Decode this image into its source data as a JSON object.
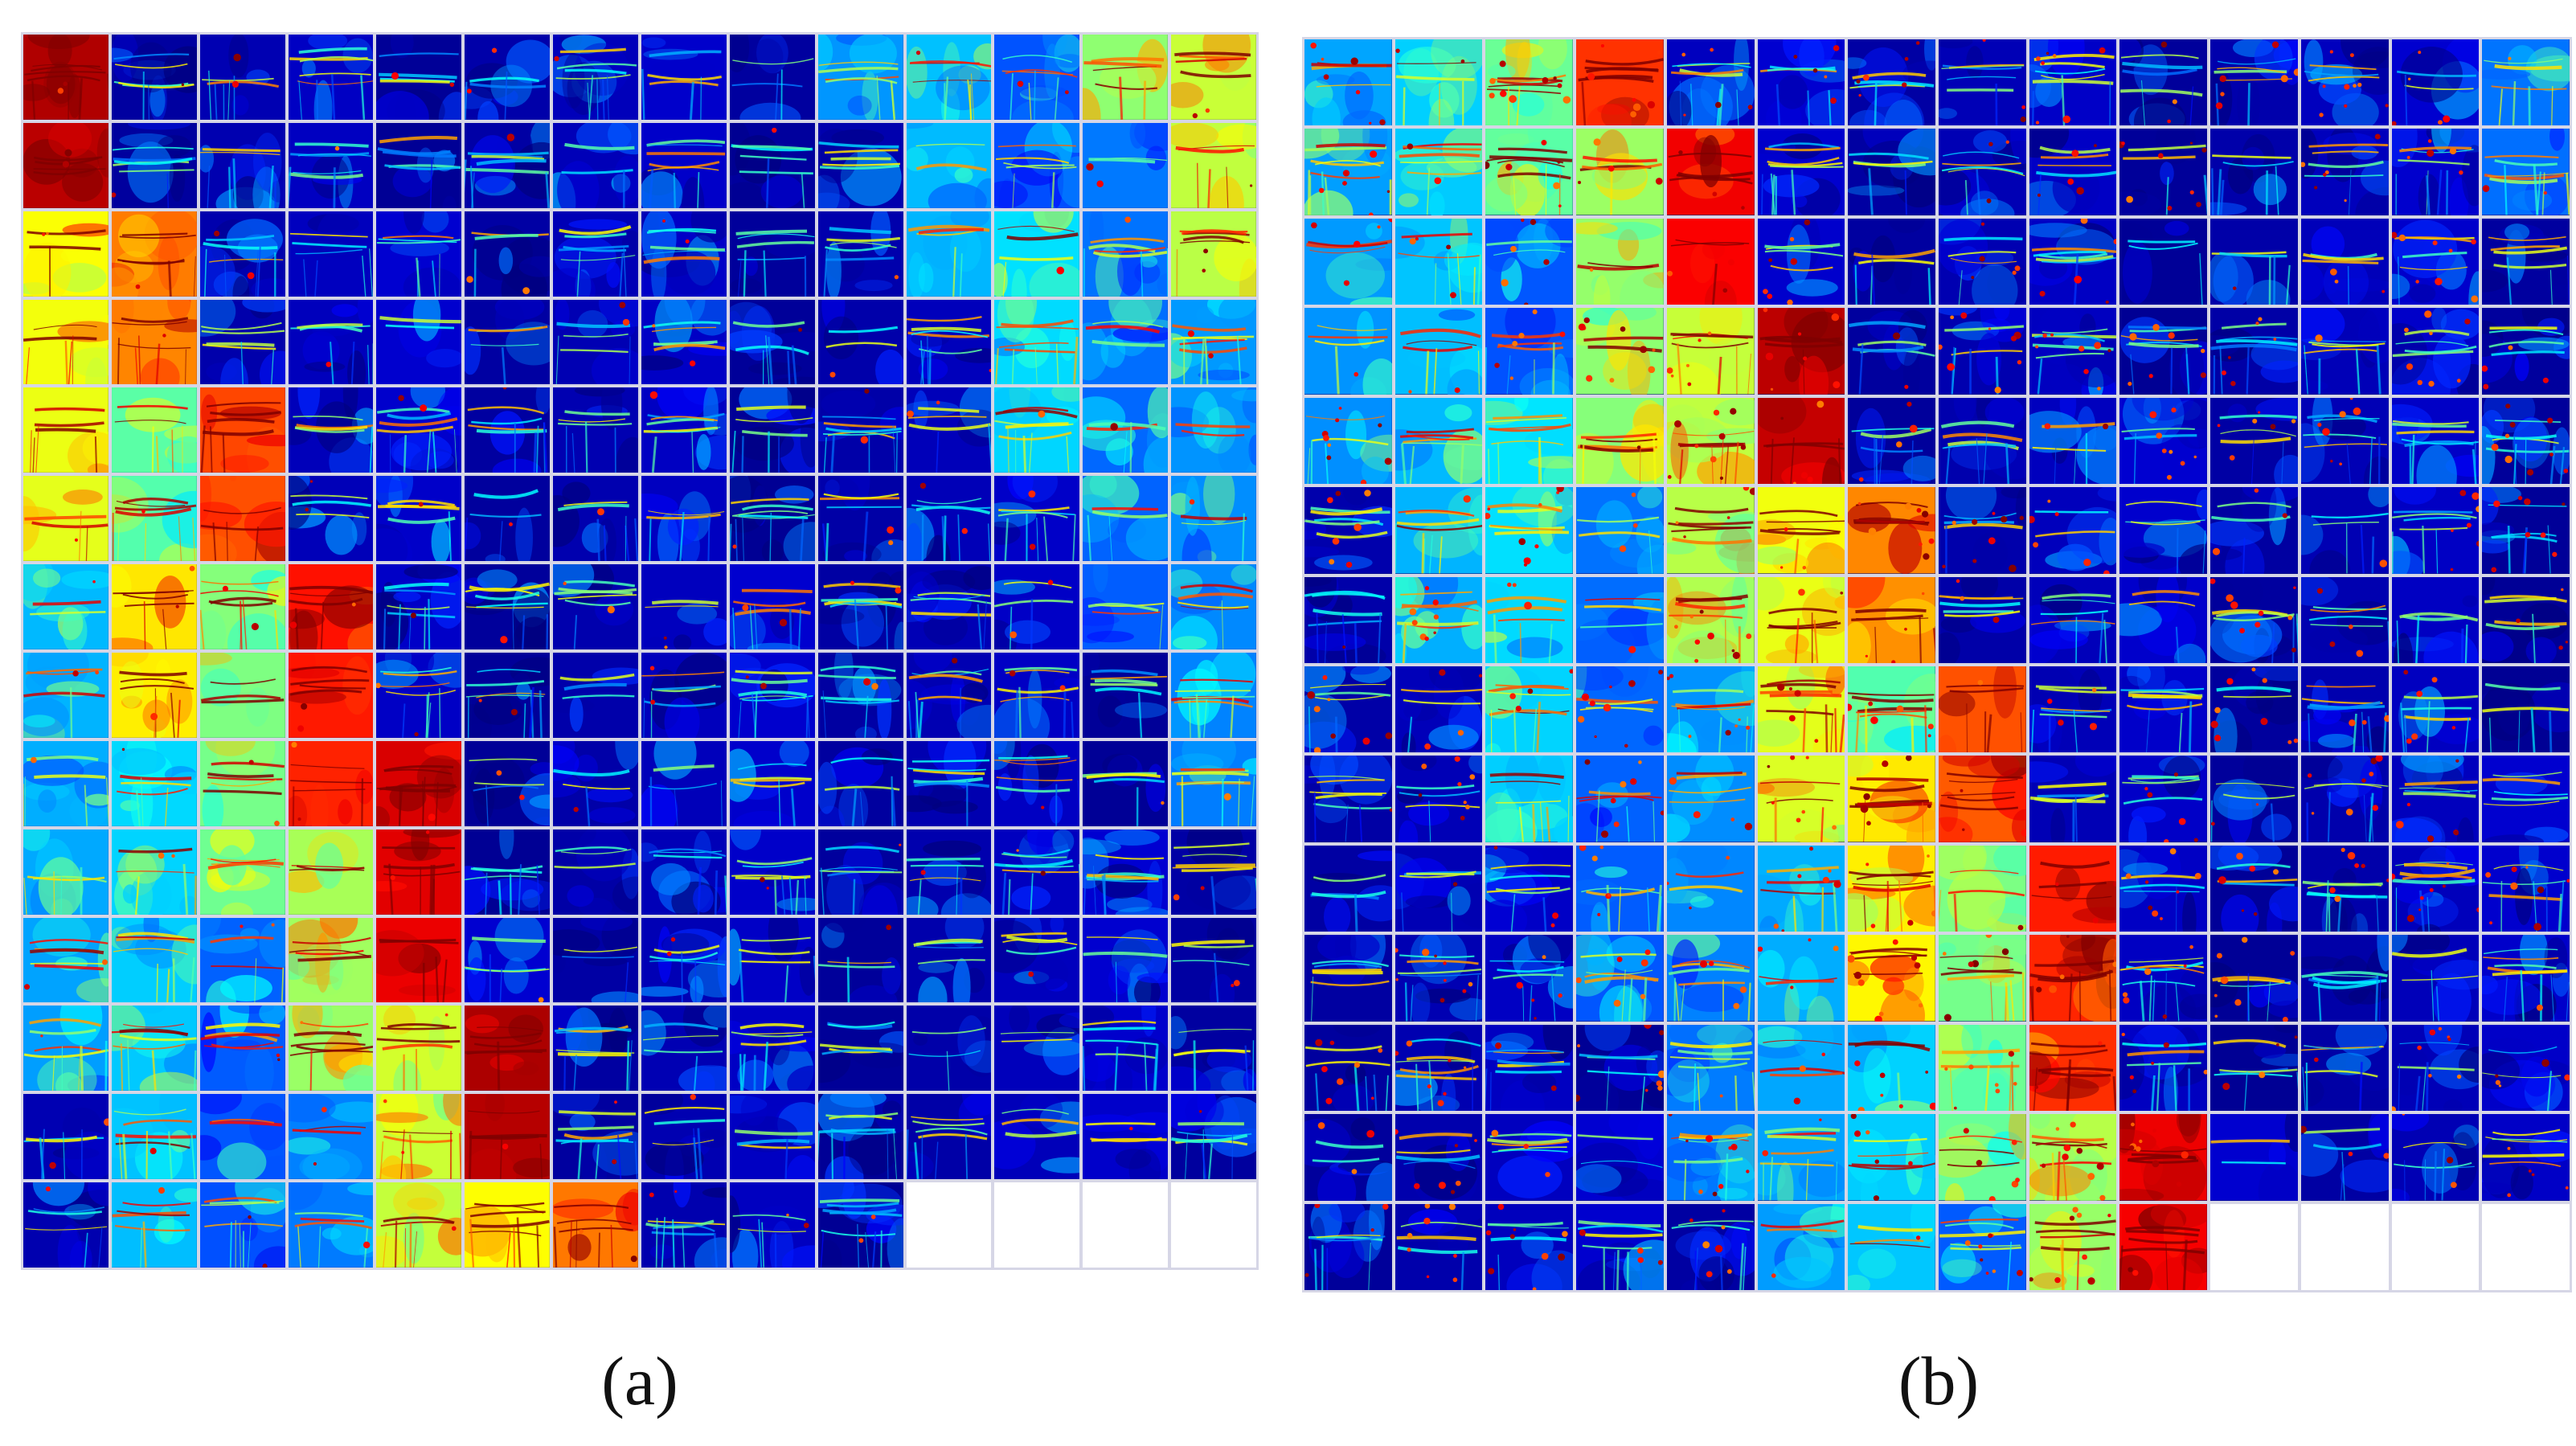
{
  "panels": [
    {
      "id": "a",
      "caption": "(a)",
      "grid_cols": 14,
      "grid_rows": 14,
      "feature_map_count": 192
    },
    {
      "id": "b",
      "caption": "(b)",
      "grid_cols": 14,
      "grid_rows": 14,
      "feature_map_count": 192
    }
  ],
  "colormap": {
    "name": "jet",
    "stops": [
      "#00007f",
      "#0000ff",
      "#0080ff",
      "#00ffff",
      "#80ff80",
      "#ffff00",
      "#ff8000",
      "#ff0000",
      "#7f0000"
    ]
  }
}
